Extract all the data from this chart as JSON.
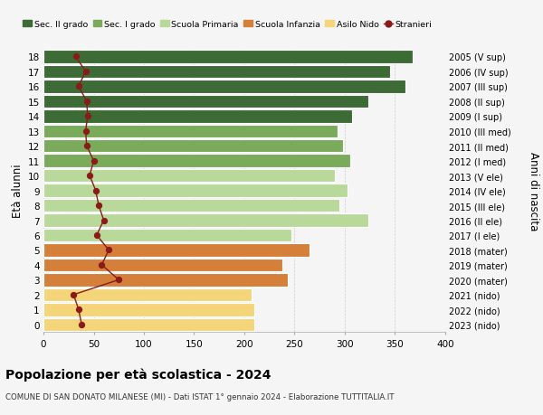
{
  "ages": [
    18,
    17,
    16,
    15,
    14,
    13,
    12,
    11,
    10,
    9,
    8,
    7,
    6,
    5,
    4,
    3,
    2,
    1,
    0
  ],
  "bar_values": [
    368,
    345,
    360,
    323,
    307,
    293,
    298,
    305,
    290,
    303,
    295,
    323,
    247,
    265,
    238,
    243,
    207,
    210,
    210
  ],
  "stranieri": [
    32,
    42,
    35,
    43,
    44,
    42,
    43,
    50,
    46,
    52,
    55,
    60,
    53,
    65,
    58,
    75,
    30,
    35,
    38
  ],
  "right_labels": [
    "2005 (V sup)",
    "2006 (IV sup)",
    "2007 (III sup)",
    "2008 (II sup)",
    "2009 (I sup)",
    "2010 (III med)",
    "2011 (II med)",
    "2012 (I med)",
    "2013 (V ele)",
    "2014 (IV ele)",
    "2015 (III ele)",
    "2016 (II ele)",
    "2017 (I ele)",
    "2018 (mater)",
    "2019 (mater)",
    "2020 (mater)",
    "2021 (nido)",
    "2022 (nido)",
    "2023 (nido)"
  ],
  "bar_colors": [
    "#3d6b35",
    "#3d6b35",
    "#3d6b35",
    "#3d6b35",
    "#3d6b35",
    "#7aab5a",
    "#7aab5a",
    "#7aab5a",
    "#b8d99a",
    "#b8d99a",
    "#b8d99a",
    "#b8d99a",
    "#b8d99a",
    "#d4803a",
    "#d4803a",
    "#d4803a",
    "#f5d57a",
    "#f5d57a",
    "#f5d57a"
  ],
  "legend_labels": [
    "Sec. II grado",
    "Sec. I grado",
    "Scuola Primaria",
    "Scuola Infanzia",
    "Asilo Nido",
    "Stranieri"
  ],
  "legend_colors": [
    "#3d6b35",
    "#7aab5a",
    "#b8d99a",
    "#d4803a",
    "#f5d57a",
    "#aa1111"
  ],
  "stranieri_color": "#8b1a1a",
  "ylabel_left": "Età alunni",
  "ylabel_right": "Anni di nascita",
  "title": "Popolazione per età scolastica - 2024",
  "subtitle": "COMUNE DI SAN DONATO MILANESE (MI) - Dati ISTAT 1° gennaio 2024 - Elaborazione TUTTITALIA.IT",
  "xlim": [
    0,
    400
  ],
  "xticks": [
    0,
    50,
    100,
    150,
    200,
    250,
    300,
    350,
    400
  ],
  "background_color": "#f5f5f5",
  "grid_color": "#cccccc"
}
